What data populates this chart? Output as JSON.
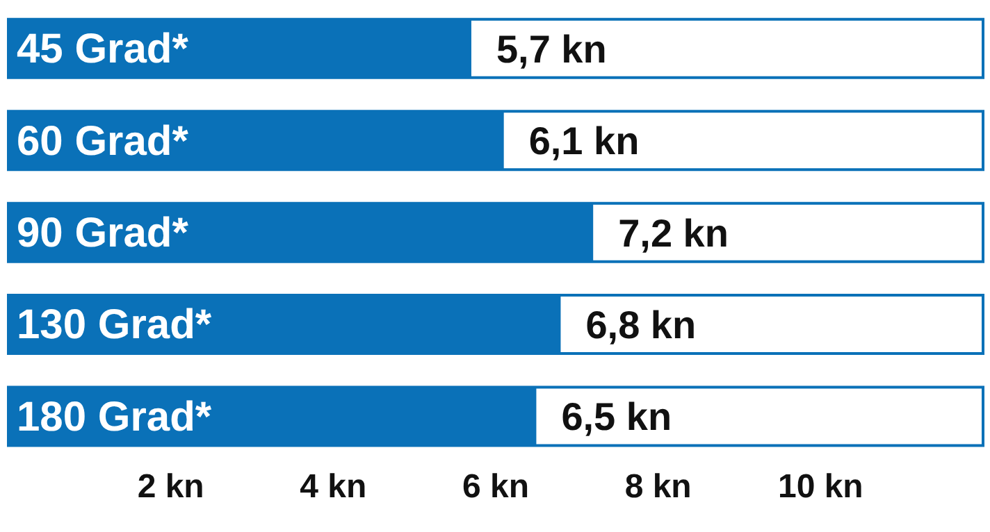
{
  "chart_data": {
    "type": "bar",
    "orientation": "horizontal",
    "categories": [
      "45 Grad*",
      "60 Grad*",
      "90 Grad*",
      "130 Grad*",
      "180 Grad*"
    ],
    "values": [
      5.7,
      6.1,
      7.2,
      6.8,
      6.5
    ],
    "value_labels": [
      "5,7 kn",
      "6,1 kn",
      "7,2 kn",
      "6,8 kn",
      "6,5 kn"
    ],
    "color": "#0a71b8",
    "xlim": [
      0,
      12
    ],
    "xticks": [
      {
        "value": 2,
        "label": "2 kn"
      },
      {
        "value": 4,
        "label": "4 kn"
      },
      {
        "value": 6,
        "label": "6 kn"
      },
      {
        "value": 8,
        "label": "8 kn"
      },
      {
        "value": 10,
        "label": "10 kn"
      }
    ],
    "grid": false,
    "legend": false
  }
}
